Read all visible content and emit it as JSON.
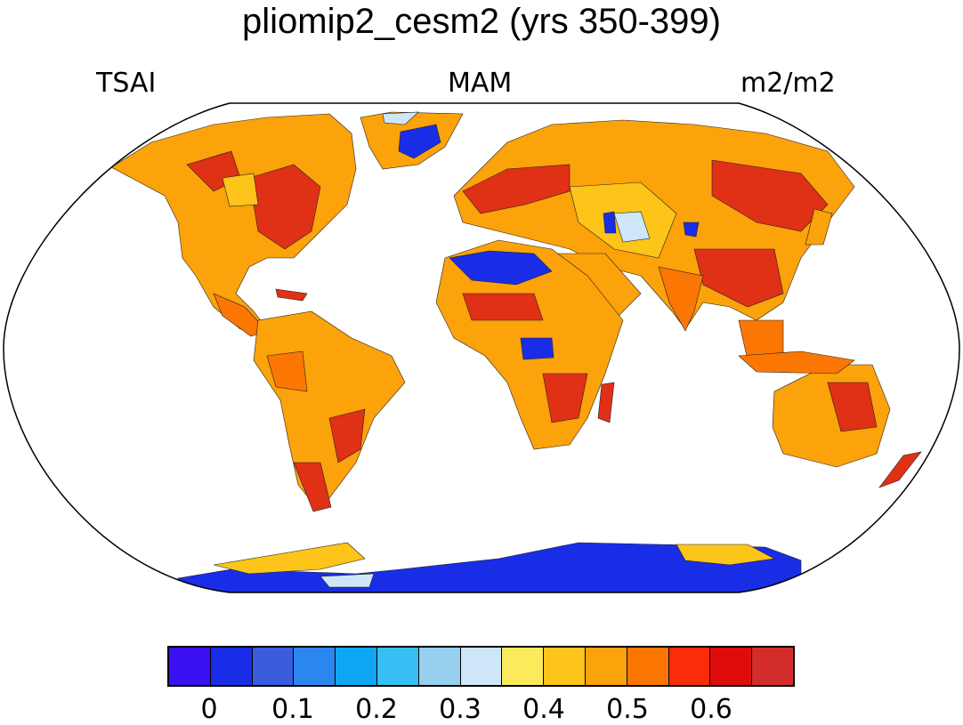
{
  "title": "pliomip2_cesm2 (yrs 350-399)",
  "subtitle_left": "TSAI",
  "subtitle_center": "MAM",
  "subtitle_right": "m2/m2",
  "colorbar": {
    "colors": [
      "#3b10f0",
      "#1a2de6",
      "#3a5ddc",
      "#2c86f0",
      "#0fa6f6",
      "#37bff3",
      "#97cfee",
      "#cde7f8",
      "#fbeb5c",
      "#fdc419",
      "#fca20a",
      "#fc7604",
      "#fa2c0a",
      "#e00b0d",
      "#d32d2b"
    ],
    "labels": [
      "0",
      "0.1",
      "0.2",
      "0.3",
      "0.4",
      "0.5",
      "0.6"
    ]
  },
  "map_colors": {
    "land_base": "#fca20a",
    "mid": "#fc7604",
    "high": "#e03015",
    "light": "#fdc419",
    "low_blue": "#1a2de6",
    "pale": "#cde7f8",
    "ice": "#1a2de6",
    "ocean": "#ffffff"
  }
}
